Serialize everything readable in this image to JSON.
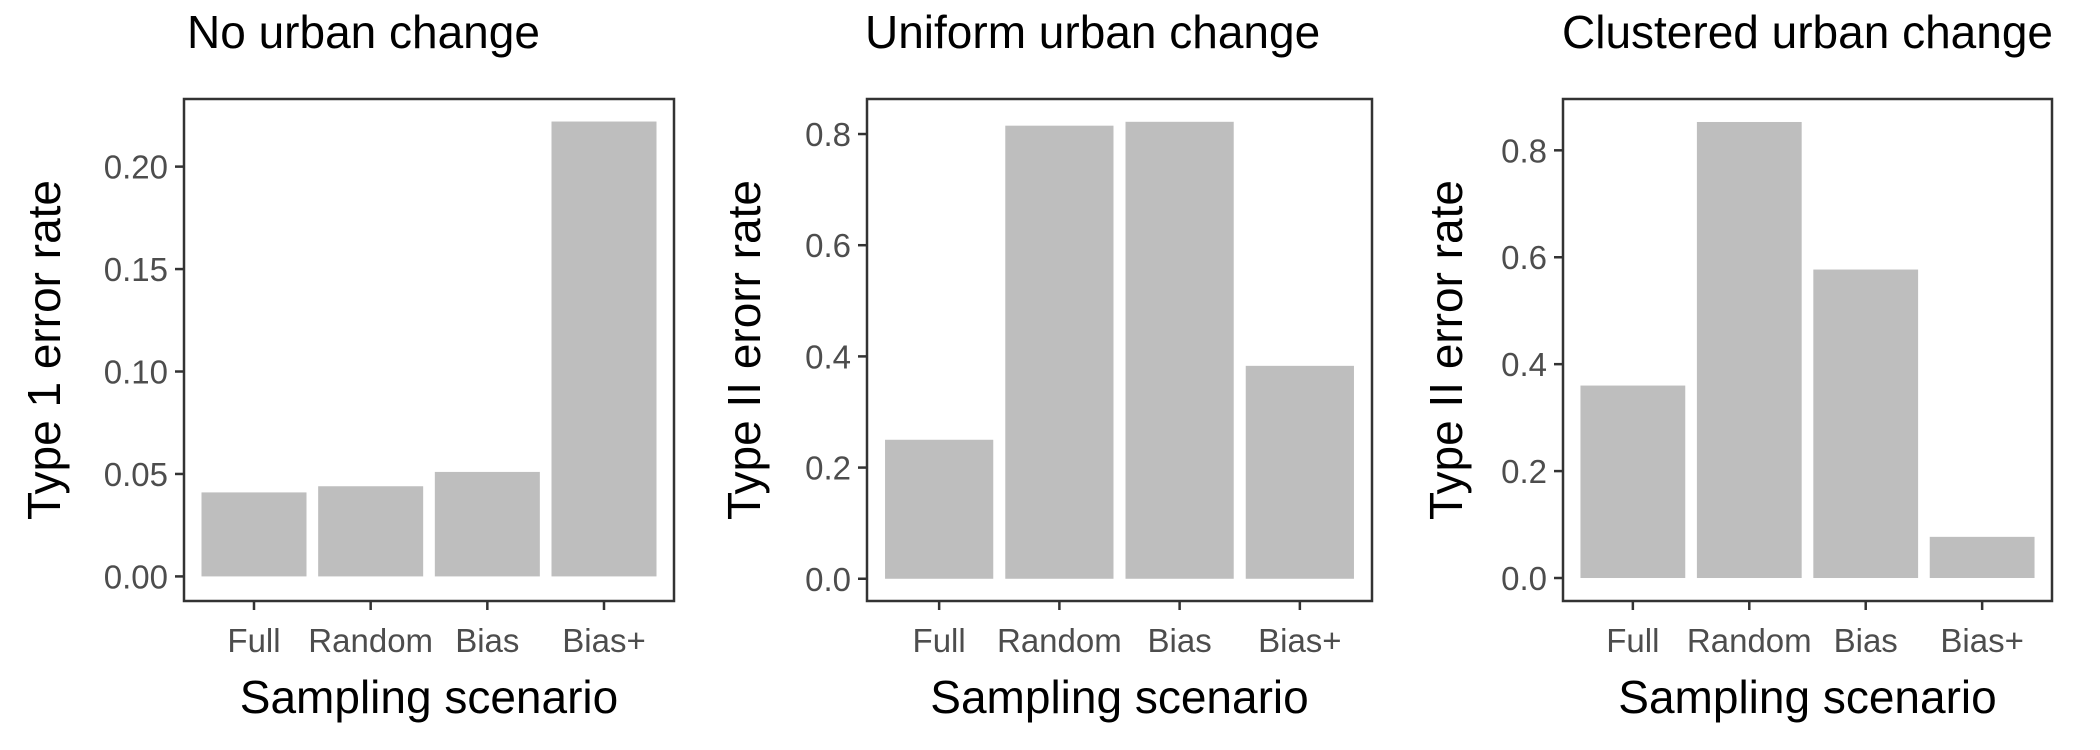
{
  "chart_data": [
    {
      "type": "bar",
      "title": "No urban change",
      "xlabel": "Sampling scenario",
      "ylabel": "Type 1 error rate",
      "categories": [
        "Full",
        "Random",
        "Bias",
        "Bias+"
      ],
      "values": [
        0.041,
        0.044,
        0.051,
        0.222
      ],
      "ylim": [
        -0.012,
        0.233
      ],
      "yticks": [
        0.0,
        0.05,
        0.1,
        0.15,
        0.2
      ],
      "ytick_labels": [
        "0.00",
        "0.05",
        "0.10",
        "0.15",
        "0.20"
      ],
      "bar_color": "#bebebe",
      "grid": false,
      "legend": "none"
    },
    {
      "type": "bar",
      "title": "Uniform urban change",
      "xlabel": "Sampling scenario",
      "ylabel": "Type II erorr rate",
      "categories": [
        "Full",
        "Random",
        "Bias",
        "Bias+"
      ],
      "values": [
        0.25,
        0.815,
        0.822,
        0.383
      ],
      "ylim": [
        -0.04,
        0.863
      ],
      "yticks": [
        0.0,
        0.2,
        0.4,
        0.6,
        0.8
      ],
      "ytick_labels": [
        "0.0",
        "0.2",
        "0.4",
        "0.6",
        "0.8"
      ],
      "bar_color": "#bebebe",
      "grid": false,
      "legend": "none"
    },
    {
      "type": "bar",
      "title": "Clustered urban change",
      "xlabel": "Sampling scenario",
      "ylabel": "Type II error rate",
      "categories": [
        "Full",
        "Random",
        "Bias",
        "Bias+"
      ],
      "values": [
        0.36,
        0.853,
        0.577,
        0.077
      ],
      "ylim": [
        -0.043,
        0.896
      ],
      "yticks": [
        0.0,
        0.2,
        0.4,
        0.6,
        0.8
      ],
      "ytick_labels": [
        "0.0",
        "0.2",
        "0.4",
        "0.6",
        "0.8"
      ],
      "bar_color": "#bebebe",
      "grid": false,
      "legend": "none"
    }
  ]
}
